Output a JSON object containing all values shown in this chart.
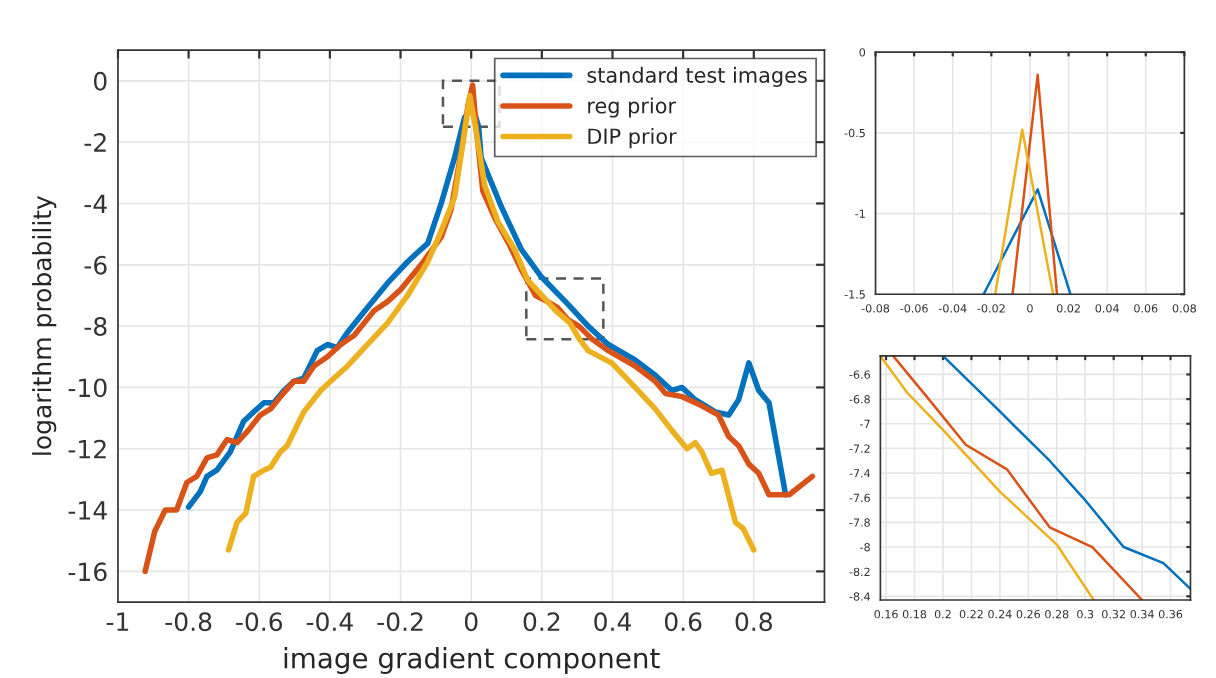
{
  "chart_data": [
    {
      "type": "line",
      "xlabel": "image gradient component",
      "ylabel": "logarithm probability",
      "xlim": [
        -1,
        1
      ],
      "ylim": [
        -17,
        1
      ],
      "xticks": [
        -1,
        -0.8,
        -0.6,
        -0.4,
        -0.2,
        0,
        0.2,
        0.4,
        0.6,
        0.8
      ],
      "yticks": [
        -16,
        -14,
        -12,
        -10,
        -8,
        -6,
        -4,
        -2,
        0
      ],
      "grid": true,
      "legend": "top right",
      "series": [
        {
          "name": "standard test images",
          "color": "#0072bd",
          "x": [
            -0.8,
            -0.767,
            -0.748,
            -0.72,
            -0.682,
            -0.644,
            -0.616,
            -0.587,
            -0.559,
            -0.53,
            -0.502,
            -0.474,
            -0.436,
            -0.407,
            -0.379,
            -0.35,
            -0.294,
            -0.237,
            -0.18,
            -0.152,
            -0.123,
            -0.085,
            -0.047,
            -0.019,
            0.004,
            0.021,
            0.028,
            0.085,
            0.142,
            0.199,
            0.275,
            0.331,
            0.388,
            0.464,
            0.521,
            0.568,
            0.597,
            0.634,
            0.691,
            0.729,
            0.757,
            0.786,
            0.814,
            0.843,
            0.89
          ],
          "values": [
            -13.9,
            -13.4,
            -12.9,
            -12.7,
            -12.1,
            -11.1,
            -10.8,
            -10.5,
            -10.5,
            -10.1,
            -9.8,
            -9.7,
            -8.8,
            -8.6,
            -8.7,
            -8.2,
            -7.4,
            -6.6,
            -5.9,
            -5.6,
            -5.3,
            -4.0,
            -2.5,
            -1.2,
            -0.85,
            -1.5,
            -2.5,
            -4.1,
            -5.5,
            -6.4,
            -7.3,
            -8.0,
            -8.6,
            -9.1,
            -9.6,
            -10.1,
            -10.0,
            -10.4,
            -10.8,
            -10.9,
            -10.4,
            -9.2,
            -10.1,
            -10.5,
            -13.5
          ]
        },
        {
          "name": "reg prior",
          "color": "#d95319",
          "x": [
            -0.923,
            -0.896,
            -0.866,
            -0.834,
            -0.805,
            -0.777,
            -0.748,
            -0.72,
            -0.691,
            -0.663,
            -0.631,
            -0.597,
            -0.568,
            -0.54,
            -0.502,
            -0.474,
            -0.445,
            -0.407,
            -0.369,
            -0.331,
            -0.275,
            -0.237,
            -0.199,
            -0.142,
            -0.085,
            -0.057,
            -0.028,
            -0.009,
            0.004,
            0.014,
            0.033,
            0.068,
            0.106,
            0.144,
            0.182,
            0.216,
            0.245,
            0.275,
            0.305,
            0.34,
            0.388,
            0.464,
            0.521,
            0.55,
            0.597,
            0.653,
            0.7,
            0.729,
            0.757,
            0.786,
            0.814,
            0.843,
            0.9,
            0.966
          ],
          "values": [
            -16.0,
            -14.7,
            -14.0,
            -14.0,
            -13.1,
            -12.9,
            -12.3,
            -12.2,
            -11.7,
            -11.8,
            -11.4,
            -10.9,
            -10.7,
            -10.3,
            -9.8,
            -9.8,
            -9.3,
            -9.0,
            -8.6,
            -8.3,
            -7.5,
            -7.2,
            -6.8,
            -6.0,
            -5.1,
            -4.2,
            -2.3,
            -0.8,
            -0.14,
            -1.5,
            -3.6,
            -4.5,
            -5.3,
            -6.2,
            -7.0,
            -7.2,
            -7.4,
            -7.8,
            -8.0,
            -8.4,
            -8.8,
            -9.3,
            -9.8,
            -10.2,
            -10.3,
            -10.6,
            -10.9,
            -11.6,
            -11.9,
            -12.5,
            -12.8,
            -13.5,
            -13.5,
            -12.9
          ]
        },
        {
          "name": "DIP prior",
          "color": "#edb120",
          "x": [
            -0.687,
            -0.663,
            -0.638,
            -0.616,
            -0.587,
            -0.568,
            -0.54,
            -0.521,
            -0.474,
            -0.426,
            -0.398,
            -0.35,
            -0.294,
            -0.237,
            -0.18,
            -0.123,
            -0.085,
            -0.047,
            -0.019,
            -0.004,
            0.012,
            0.038,
            0.076,
            0.123,
            0.16,
            0.2,
            0.24,
            0.28,
            0.305,
            0.331,
            0.398,
            0.464,
            0.521,
            0.568,
            0.611,
            0.634,
            0.653,
            0.68,
            0.71,
            0.748,
            0.77,
            0.8
          ],
          "values": [
            -15.3,
            -14.4,
            -14.1,
            -12.9,
            -12.7,
            -12.6,
            -12.1,
            -11.9,
            -10.8,
            -10.1,
            -9.8,
            -9.3,
            -8.6,
            -7.9,
            -7.0,
            -5.9,
            -4.9,
            -3.8,
            -1.7,
            -0.48,
            -1.5,
            -3.4,
            -4.6,
            -5.5,
            -6.5,
            -7.0,
            -7.5,
            -7.9,
            -8.4,
            -8.8,
            -9.2,
            -10.0,
            -10.7,
            -11.4,
            -12.0,
            -11.8,
            -12.1,
            -12.8,
            -12.7,
            -14.4,
            -14.6,
            -15.3
          ]
        }
      ]
    },
    {
      "type": "line",
      "xlim": [
        -0.08,
        0.08
      ],
      "ylim": [
        -1.5,
        0
      ],
      "xticks": [
        -0.08,
        -0.06,
        -0.04,
        -0.02,
        0,
        0.02,
        0.04,
        0.06,
        0.08
      ],
      "yticks": [
        -1.5,
        -1,
        -0.5,
        0
      ],
      "grid": true,
      "series": [
        {
          "color": "#0072bd",
          "x": [
            -0.024,
            0.004,
            0.021
          ],
          "values": [
            -1.5,
            -0.85,
            -1.5
          ]
        },
        {
          "color": "#d95319",
          "x": [
            -0.009,
            0.004,
            0.014
          ],
          "values": [
            -1.5,
            -0.14,
            -1.5
          ]
        },
        {
          "color": "#edb120",
          "x": [
            -0.018,
            -0.004,
            0.012
          ],
          "values": [
            -1.5,
            -0.48,
            -1.5
          ]
        }
      ]
    },
    {
      "type": "line",
      "xlim": [
        0.156,
        0.374
      ],
      "ylim": [
        -8.43,
        -6.45
      ],
      "xticks": [
        0.16,
        0.18,
        0.2,
        0.22,
        0.24,
        0.26,
        0.28,
        0.3,
        0.32,
        0.34,
        0.36
      ],
      "yticks": [
        -8.4,
        -8.2,
        -8,
        -7.8,
        -7.6,
        -7.4,
        -7.2,
        -7,
        -6.8,
        -6.6
      ],
      "grid": true,
      "series": [
        {
          "color": "#0072bd",
          "x": [
            0.2,
            0.24,
            0.275,
            0.3,
            0.327,
            0.355,
            0.374
          ],
          "values": [
            -6.45,
            -6.9,
            -7.3,
            -7.62,
            -8.0,
            -8.13,
            -8.34
          ]
        },
        {
          "color": "#d95319",
          "x": [
            0.165,
            0.19,
            0.216,
            0.245,
            0.275,
            0.305,
            0.34
          ],
          "values": [
            -6.45,
            -6.8,
            -7.17,
            -7.37,
            -7.84,
            -8.0,
            -8.43
          ]
        },
        {
          "color": "#edb120",
          "x": [
            0.156,
            0.175,
            0.2,
            0.24,
            0.28,
            0.306
          ],
          "values": [
            -6.45,
            -6.75,
            -7.05,
            -7.55,
            -7.98,
            -8.43
          ]
        }
      ]
    }
  ]
}
